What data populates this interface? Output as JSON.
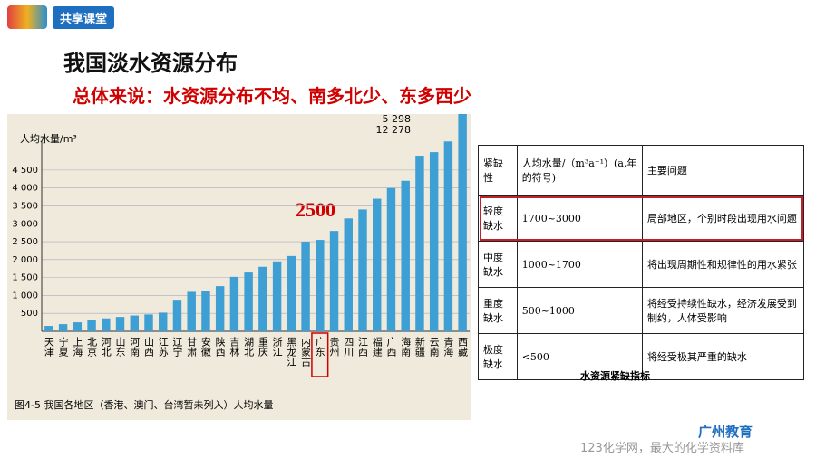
{
  "brand": "共享课堂",
  "title": "我国淡水资源分布",
  "subtitle": "总体来说：水资源分布不均、南多北少、东多西少",
  "chart_data": {
    "type": "bar",
    "y_label": "人均水量/m³",
    "caption": "图4-5  我国各地区（香港、澳门、台湾暂未列入）人均水量",
    "annotation": "2500",
    "categories": [
      "天津",
      "宁夏",
      "上海",
      "北京",
      "河北",
      "山东",
      "河南",
      "山西",
      "江苏",
      "辽宁",
      "甘肃",
      "安徽",
      "陕西",
      "吉林",
      "湖北",
      "重庆",
      "浙江",
      "黑龙江",
      "内蒙古",
      "广东",
      "贵州",
      "四川",
      "江西",
      "福建",
      "广西",
      "海南",
      "新疆",
      "云南",
      "青海",
      "西藏"
    ],
    "values": [
      150,
      200,
      250,
      320,
      360,
      400,
      440,
      470,
      520,
      880,
      1100,
      1120,
      1260,
      1520,
      1640,
      1800,
      1950,
      2100,
      2500,
      2550,
      2800,
      3150,
      3400,
      3700,
      4000,
      4200,
      4900,
      5000,
      5298,
      12278
    ],
    "value_labels": [
      null,
      null,
      null,
      null,
      null,
      null,
      null,
      null,
      null,
      null,
      null,
      null,
      null,
      null,
      null,
      null,
      null,
      null,
      null,
      null,
      null,
      null,
      null,
      null,
      null,
      null,
      null,
      null,
      "5 298",
      "12 278"
    ],
    "color": "#3d9fd3",
    "ylim": [
      0,
      4800
    ],
    "yticks": [
      500,
      {
        "value": 1000,
        "label": "1 000"
      },
      {
        "value": 1500,
        "label": "1 500"
      },
      {
        "value": 2000,
        "label": "2 000"
      },
      {
        "value": 2500,
        "label": "2 500"
      },
      {
        "value": 3000,
        "label": "3 000"
      },
      {
        "value": 3500,
        "label": "3 500"
      },
      {
        "value": 4000,
        "label": "4 000"
      },
      {
        "value": 4500,
        "label": "4 500"
      }
    ],
    "grid": true
  },
  "table": {
    "header": [
      "紧缺性",
      "人均水量/（m³a⁻¹）(a,年的符号)",
      "主要问题"
    ],
    "rows": [
      [
        "轻度缺水",
        "1700~3000",
        "局部地区，个别时段出现用水问题"
      ],
      [
        "中度缺水",
        "1000~1700",
        "将出现周期性和规律性的用水紧张"
      ],
      [
        "重度缺水",
        "500~1000",
        "将经受持续性缺水，经济发展受到制约，人体受影响"
      ],
      [
        "极度缺水",
        "<500",
        "将经受极其严重的缺水"
      ]
    ],
    "caption": "水资源紧缺指标"
  },
  "org": "广州教育",
  "footer": "123化学网，最大的化学资料库"
}
